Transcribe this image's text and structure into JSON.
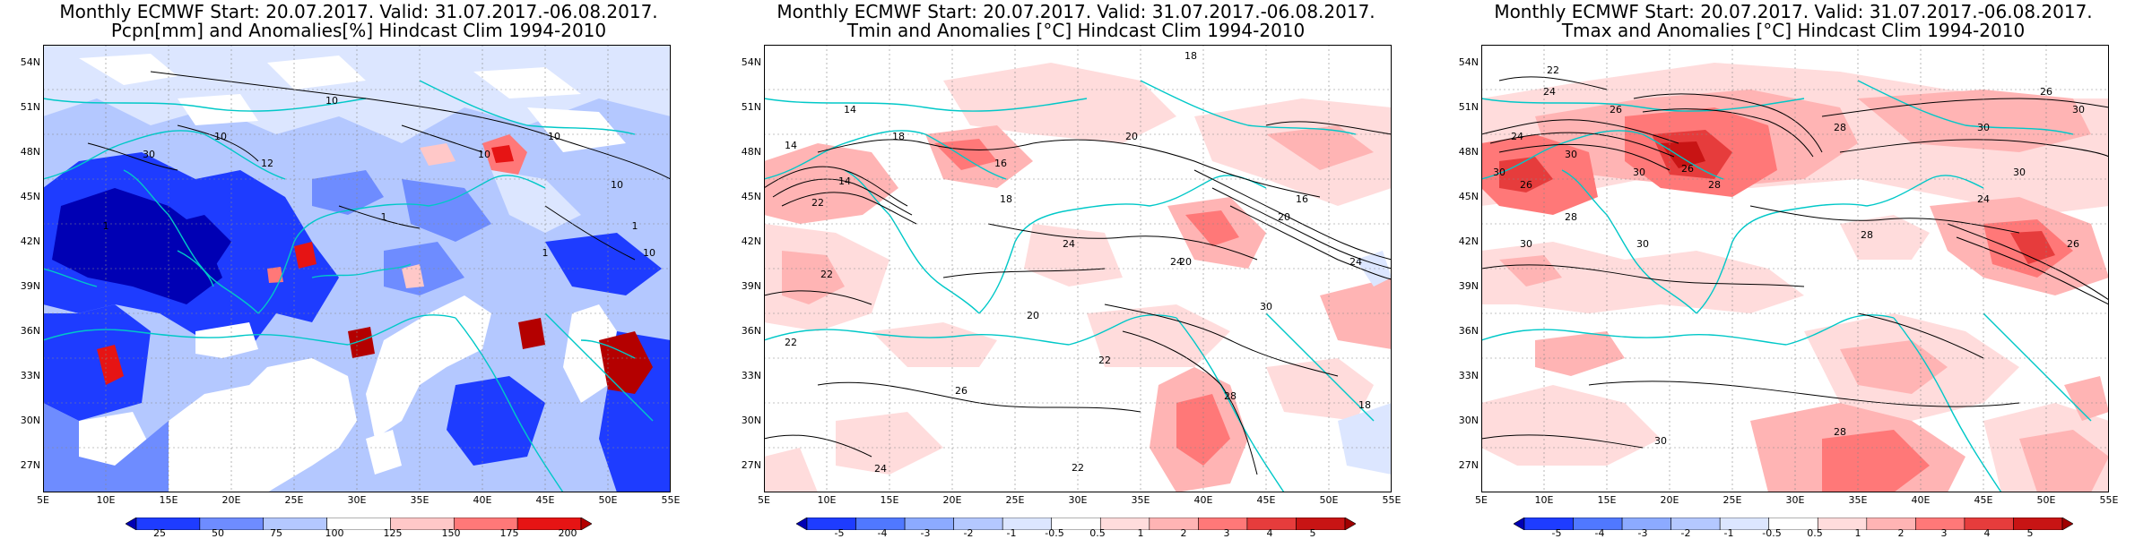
{
  "panels": [
    {
      "title_line1": "Monthly ECMWF Start: 20.07.2017. Valid: 31.07.2017.-06.08.2017.",
      "title_line2": "Pcpn[mm] and Anomalies[%] Hindcast Clim 1994-2010",
      "colorbar_ticks": [
        "25",
        "50",
        "75",
        "100",
        "125",
        "150",
        "175",
        "200"
      ],
      "colorbar_colors": [
        "#0000b4",
        "#1e3cff",
        "#6e8cff",
        "#b4c8ff",
        "#ffffff",
        "#ffc8c8",
        "#ff7878",
        "#e61414",
        "#b40000"
      ],
      "contour_labels": [
        "10",
        "10",
        "10",
        "30",
        "12",
        "1",
        "10",
        "1",
        "10",
        "1",
        "1",
        "10"
      ]
    },
    {
      "title_line1": "Monthly ECMWF Start: 20.07.2017. Valid: 31.07.2017.-06.08.2017.",
      "title_line2": "Tmin and Anomalies [°C] Hindcast Clim 1994-2010",
      "colorbar_ticks": [
        "-5",
        "-4",
        "-3",
        "-2",
        "-1",
        "-0.5",
        "0.5",
        "1",
        "2",
        "3",
        "4",
        "5"
      ],
      "colorbar_colors": [
        "#0000b4",
        "#1e3cff",
        "#5078ff",
        "#8caaff",
        "#b4c8ff",
        "#dce6ff",
        "#ffffff",
        "#ffdcdc",
        "#ffb4b4",
        "#ff7878",
        "#e63c3c",
        "#c81414",
        "#a00000"
      ],
      "contour_labels": [
        "14",
        "14",
        "18",
        "18",
        "16",
        "20",
        "14",
        "22",
        "24",
        "20",
        "18",
        "22",
        "24",
        "16",
        "20",
        "22",
        "26",
        "30",
        "20",
        "22",
        "24",
        "28",
        "24",
        "22",
        "18"
      ]
    },
    {
      "title_line1": "Monthly ECMWF Start: 20.07.2017. Valid: 31.07.2017.-06.08.2017.",
      "title_line2": "Tmax and Anomalies [°C] Hindcast Clim 1994-2010",
      "colorbar_ticks": [
        "-5",
        "-4",
        "-3",
        "-2",
        "-1",
        "-0.5",
        "0.5",
        "1",
        "2",
        "3",
        "4",
        "5"
      ],
      "colorbar_colors": [
        "#0000b4",
        "#1e3cff",
        "#5078ff",
        "#8caaff",
        "#b4c8ff",
        "#dce6ff",
        "#ffffff",
        "#ffdcdc",
        "#ffb4b4",
        "#ff7878",
        "#e63c3c",
        "#c81414",
        "#a00000"
      ],
      "contour_labels": [
        "22",
        "24",
        "26",
        "26",
        "30",
        "28",
        "24",
        "30",
        "30",
        "26",
        "30",
        "28",
        "30",
        "26",
        "30",
        "28",
        "26",
        "30",
        "28",
        "30",
        "30",
        "24",
        "28"
      ]
    }
  ],
  "lat_labels": [
    "54N",
    "51N",
    "48N",
    "45N",
    "42N",
    "39N",
    "36N",
    "33N",
    "30N",
    "27N"
  ],
  "lon_labels": [
    "5E",
    "10E",
    "15E",
    "20E",
    "25E",
    "30E",
    "35E",
    "40E",
    "45E",
    "50E",
    "55E"
  ],
  "colors": {
    "coastline": "#00c8c8",
    "contour": "#000000",
    "grid": "#888888"
  }
}
